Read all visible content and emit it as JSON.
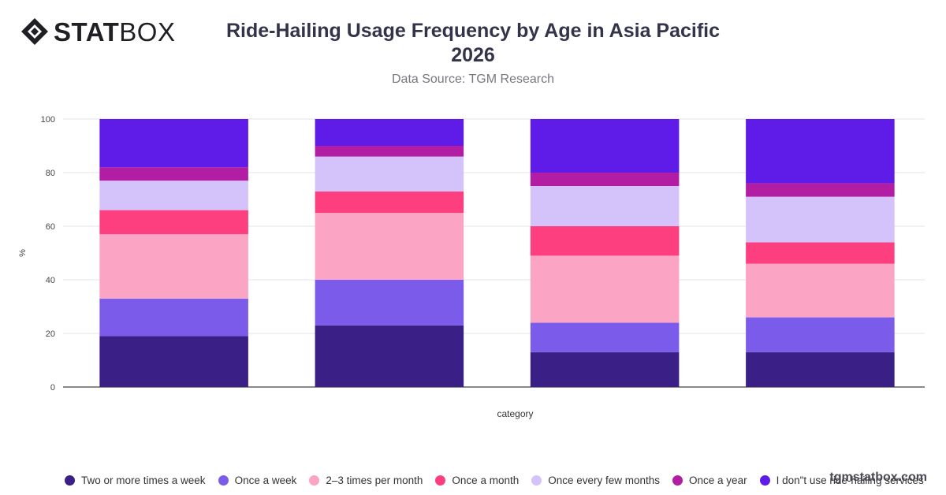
{
  "header": {
    "logo_text_bold": "STAT",
    "logo_text_light": "BOX",
    "title_line1": "Ride-Hailing Usage Frequency by Age in Asia Pacific",
    "title_line2": "2026",
    "subtitle": "Data Source: TGM Research"
  },
  "watermark": "tgmstatbox.com",
  "chart_data": {
    "type": "bar",
    "stacked": true,
    "xlabel": "category",
    "ylabel": "%",
    "ylim": [
      0,
      100
    ],
    "yticks": [
      0,
      20,
      40,
      60,
      80,
      100
    ],
    "grid": true,
    "legend_position": "bottom",
    "categories": [
      "",
      "",
      "",
      ""
    ],
    "series": [
      {
        "name": "Two or more times a week",
        "color": "#3a1f86",
        "values": [
          19,
          23,
          13,
          13
        ]
      },
      {
        "name": "Once a week",
        "color": "#7b5cea",
        "values": [
          14,
          17,
          11,
          13
        ]
      },
      {
        "name": "2–3 times per month",
        "color": "#fba4c4",
        "values": [
          24,
          25,
          25,
          20
        ]
      },
      {
        "name": "Once a month",
        "color": "#fd3f7f",
        "values": [
          9,
          8,
          11,
          8
        ]
      },
      {
        "name": "Once every few months",
        "color": "#d4c2fa",
        "values": [
          11,
          13,
          15,
          17
        ]
      },
      {
        "name": "Once a year",
        "color": "#b21da3",
        "values": [
          5,
          4,
          5,
          5
        ]
      },
      {
        "name": "I don\"t use ride-hailing services",
        "color": "#5f1be8",
        "values": [
          18,
          10,
          20,
          24
        ]
      }
    ]
  }
}
